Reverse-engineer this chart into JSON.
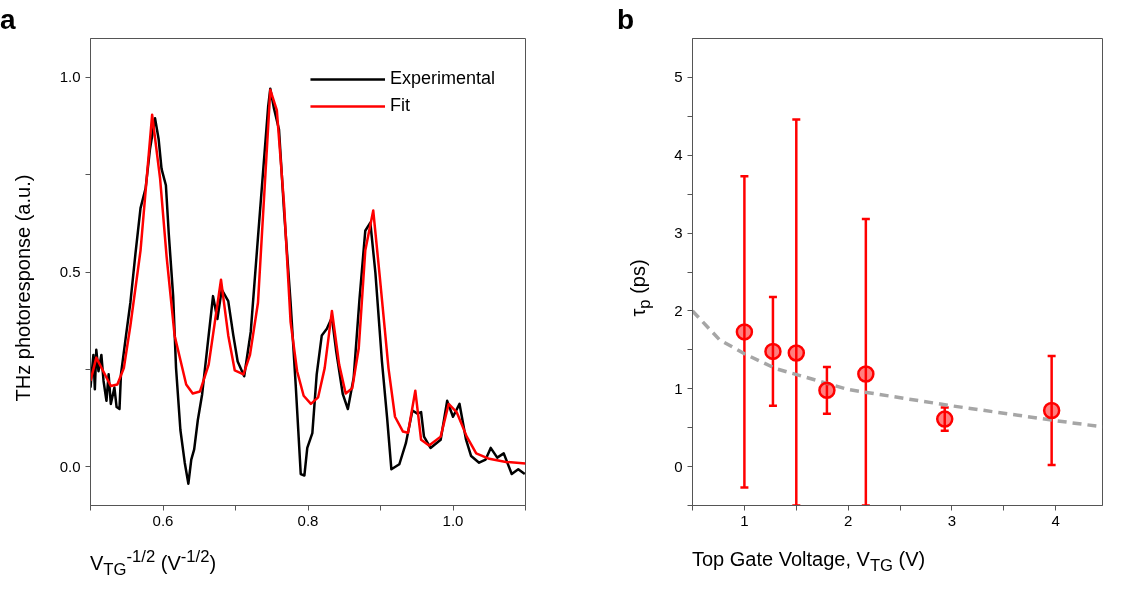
{
  "chart_data": [
    {
      "type": "line",
      "title": "a",
      "xlabel": "V$_{TG}$$^{-1/2}$ (V$^{-1/2}$)",
      "ylabel": "THz photoresponse (a.u.)",
      "xlim": [
        0.5,
        1.1
      ],
      "ylim": [
        -0.1,
        1.1
      ],
      "xticks": [
        {
          "value": 0.5,
          "label": null
        },
        0.6,
        {
          "value": 0.7,
          "label": null
        },
        0.8,
        {
          "value": 0.9,
          "label": null
        },
        {
          "value": 1.0,
          "label": "1.0"
        },
        {
          "value": 1.1,
          "label": null
        }
      ],
      "yticks": [
        {
          "value": 0,
          "label": "0.0"
        },
        {
          "value": 0.25,
          "label": null
        },
        0.5,
        {
          "value": 0.75,
          "label": null
        },
        {
          "value": 1.0,
          "label": "1.0"
        }
      ],
      "grid": false,
      "legend": "top right",
      "series": [
        {
          "name": "Experimental",
          "color": "#000000",
          "x": [
            0.5,
            0.504,
            0.506,
            0.508,
            0.511,
            0.515,
            0.518,
            0.522,
            0.525,
            0.528,
            0.533,
            0.536,
            0.54,
            0.542,
            0.549,
            0.555,
            0.562,
            0.569,
            0.576,
            0.582,
            0.589,
            0.594,
            0.598,
            0.604,
            0.608,
            0.614,
            0.618,
            0.624,
            0.63,
            0.635,
            0.639,
            0.643,
            0.648,
            0.654,
            0.661,
            0.669,
            0.675,
            0.681,
            0.69,
            0.697,
            0.703,
            0.712,
            0.721,
            0.731,
            0.738,
            0.745,
            0.748,
            0.753,
            0.76,
            0.767,
            0.776,
            0.783,
            0.79,
            0.795,
            0.799,
            0.806,
            0.812,
            0.819,
            0.826,
            0.833,
            0.839,
            0.848,
            0.855,
            0.863,
            0.871,
            0.879,
            0.886,
            0.893,
            0.902,
            0.909,
            0.915,
            0.926,
            0.935,
            0.944,
            0.951,
            0.956,
            0.96,
            0.969,
            0.983,
            0.992,
            1.0,
            1.009,
            1.018,
            1.025,
            1.036,
            1.045,
            1.052,
            1.061,
            1.07,
            1.081,
            1.09,
            1.099
          ],
          "values": [
            0.203,
            0.287,
            0.199,
            0.3,
            0.245,
            0.287,
            0.22,
            0.169,
            0.237,
            0.161,
            0.203,
            0.153,
            0.148,
            0.237,
            0.337,
            0.421,
            0.547,
            0.664,
            0.715,
            0.815,
            0.895,
            0.841,
            0.765,
            0.723,
            0.597,
            0.438,
            0.253,
            0.094,
            0.01,
            -0.044,
            0.018,
            0.044,
            0.119,
            0.186,
            0.304,
            0.438,
            0.379,
            0.455,
            0.425,
            0.337,
            0.27,
            0.232,
            0.346,
            0.589,
            0.757,
            0.924,
            0.971,
            0.921,
            0.866,
            0.656,
            0.421,
            0.211,
            -0.019,
            -0.023,
            0.048,
            0.086,
            0.237,
            0.337,
            0.354,
            0.383,
            0.295,
            0.186,
            0.148,
            0.228,
            0.43,
            0.606,
            0.627,
            0.497,
            0.27,
            0.128,
            -0.007,
            0.006,
            0.06,
            0.144,
            0.136,
            0.14,
            0.077,
            0.048,
            0.069,
            0.169,
            0.128,
            0.161,
            0.069,
            0.027,
            0.01,
            0.018,
            0.048,
            0.023,
            0.034,
            -0.019,
            -0.007,
            -0.019
          ]
        },
        {
          "name": "Fit",
          "color": "#ff0000",
          "x": [
            0.5,
            0.508,
            0.528,
            0.537,
            0.546,
            0.555,
            0.569,
            0.585,
            0.596,
            0.605,
            0.616,
            0.632,
            0.641,
            0.651,
            0.663,
            0.68,
            0.69,
            0.699,
            0.711,
            0.72,
            0.731,
            0.748,
            0.757,
            0.767,
            0.776,
            0.785,
            0.794,
            0.804,
            0.814,
            0.823,
            0.833,
            0.843,
            0.852,
            0.861,
            0.87,
            0.879,
            0.89,
            0.899,
            0.911,
            0.92,
            0.931,
            0.938,
            0.948,
            0.956,
            0.967,
            0.983,
            0.994,
            1.005,
            1.019,
            1.032,
            1.05,
            1.073,
            1.1
          ],
          "values": [
            0.22,
            0.28,
            0.207,
            0.211,
            0.253,
            0.362,
            0.555,
            0.904,
            0.74,
            0.539,
            0.337,
            0.211,
            0.188,
            0.193,
            0.262,
            0.48,
            0.337,
            0.247,
            0.237,
            0.287,
            0.421,
            0.968,
            0.916,
            0.673,
            0.371,
            0.245,
            0.182,
            0.161,
            0.178,
            0.253,
            0.4,
            0.262,
            0.188,
            0.201,
            0.304,
            0.555,
            0.658,
            0.488,
            0.253,
            0.128,
            0.09,
            0.087,
            0.195,
            0.069,
            0.054,
            0.077,
            0.161,
            0.14,
            0.077,
            0.034,
            0.02,
            0.012,
            0.008
          ]
        }
      ]
    },
    {
      "type": "scatter",
      "title": "b",
      "xlabel": "Top Gate Voltage, V$_{TG}$ (V)",
      "ylabel": "τ$_{p}$ (ps)",
      "xlim": [
        0.5,
        4.45
      ],
      "ylim": [
        -0.5,
        5.5
      ],
      "xticks": [
        {
          "value": 0.5,
          "label": null
        },
        1,
        {
          "value": 1.5,
          "label": null
        },
        2,
        {
          "value": 2.5,
          "label": null
        },
        3,
        {
          "value": 3.5,
          "label": null
        },
        4
      ],
      "yticks": [
        {
          "value": -0.5,
          "label": null
        },
        0,
        {
          "value": 0.5,
          "label": null
        },
        1,
        {
          "value": 1.5,
          "label": null
        },
        2,
        {
          "value": 2.5,
          "label": null
        },
        3,
        {
          "value": 3.5,
          "label": null
        },
        4,
        {
          "value": 4.5,
          "label": null
        },
        5
      ],
      "grid": false,
      "series": [
        {
          "type": "line",
          "line_style": "dashed",
          "color": "#a6a6a6",
          "x": [
            0.5,
            0.76,
            1.0,
            1.3,
            2.0,
            3.0,
            4.0,
            4.45
          ],
          "values": [
            2.0,
            1.63,
            1.45,
            1.26,
            0.99,
            0.78,
            0.59,
            0.51
          ]
        },
        {
          "marker": "circle",
          "color": "#ff0000",
          "x": [
            1.0,
            1.275,
            1.5,
            1.795,
            2.17,
            2.93,
            3.96
          ],
          "values": [
            1.73,
            1.48,
            1.46,
            0.98,
            1.19,
            0.61,
            0.72
          ],
          "errors": [
            2.0,
            0.7,
            [
              -0.5,
              4.46
            ],
            0.3,
            [
              -0.5,
              3.18
            ],
            0.15,
            0.7
          ]
        }
      ]
    }
  ]
}
